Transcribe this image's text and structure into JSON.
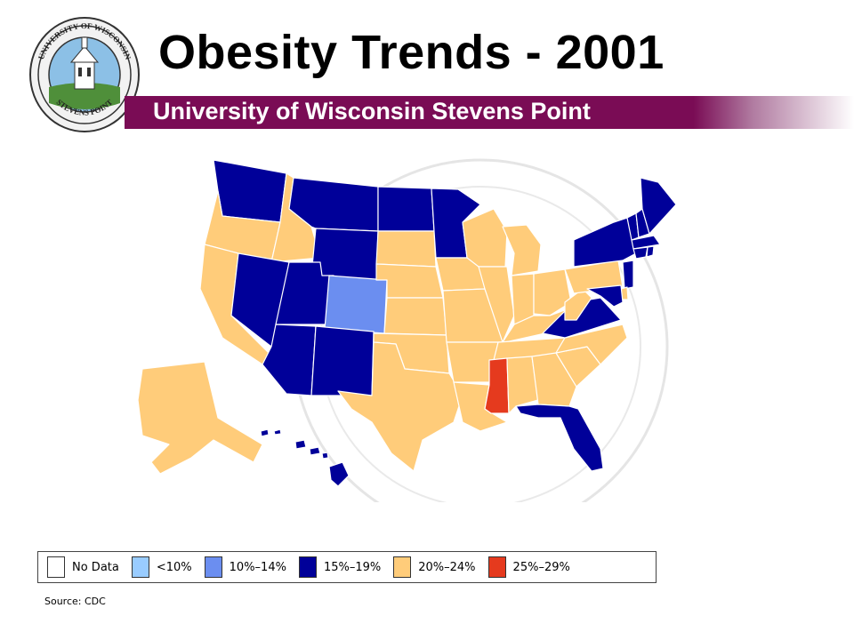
{
  "header": {
    "title": "Obesity Trends - 2001",
    "subtitle": "University of Wisconsin Stevens Point"
  },
  "seal": {
    "icon": "university-seal-icon",
    "top_text": "UNIVERSITY OF WISCONSIN",
    "bottom_text": "STEVENS POINT"
  },
  "colors": {
    "no_data": "#ffffff",
    "lt10": "#99ccff",
    "c10_14": "#6b8ef0",
    "c15_19": "#000099",
    "c20_24": "#ffcc7a",
    "c25_29": "#e53a1e",
    "band": "#7a0c55"
  },
  "legend": {
    "items": [
      {
        "label": "No Data",
        "color": "#ffffff"
      },
      {
        "label": "<10%",
        "color": "#99ccff"
      },
      {
        "label": "10%–14%",
        "color": "#6b8ef0"
      },
      {
        "label": "15%–19%",
        "color": "#000099"
      },
      {
        "label": "20%–24%",
        "color": "#ffcc7a"
      },
      {
        "label": "25%–29%",
        "color": "#e53a1e"
      }
    ]
  },
  "map_data": {
    "states": {
      "WA": "15%–19%",
      "OR": "20%–24%",
      "CA": "20%–24%",
      "ID": "20%–24%",
      "NV": "15%–19%",
      "MT": "15%–19%",
      "WY": "15%–19%",
      "UT": "15%–19%",
      "AZ": "15%–19%",
      "CO": "10%–14%",
      "NM": "15%–19%",
      "ND": "15%–19%",
      "SD": "20%–24%",
      "NE": "20%–24%",
      "KS": "20%–24%",
      "OK": "20%–24%",
      "TX": "20%–24%",
      "MN": "15%–19%",
      "IA": "20%–24%",
      "MO": "20%–24%",
      "AR": "20%–24%",
      "LA": "20%–24%",
      "WI": "20%–24%",
      "IL": "20%–24%",
      "MI": "20%–24%",
      "IN": "20%–24%",
      "OH": "20%–24%",
      "KY": "20%–24%",
      "TN": "20%–24%",
      "MS": "25%–29%",
      "AL": "20%–24%",
      "GA": "20%–24%",
      "FL": "15%–19%",
      "SC": "20%–24%",
      "NC": "20%–24%",
      "VA": "15%–19%",
      "WV": "20%–24%",
      "PA": "20%–24%",
      "NY": "15%–19%",
      "VT": "15%–19%",
      "NH": "15%–19%",
      "ME": "15%–19%",
      "MA": "15%–19%",
      "CT": "15%–19%",
      "RI": "15%–19%",
      "NJ": "15%–19%",
      "DE": "20%–24%",
      "MD": "15%–19%",
      "AK": "20%–24%",
      "HI": "15%–19%"
    }
  },
  "source": "Source: CDC"
}
